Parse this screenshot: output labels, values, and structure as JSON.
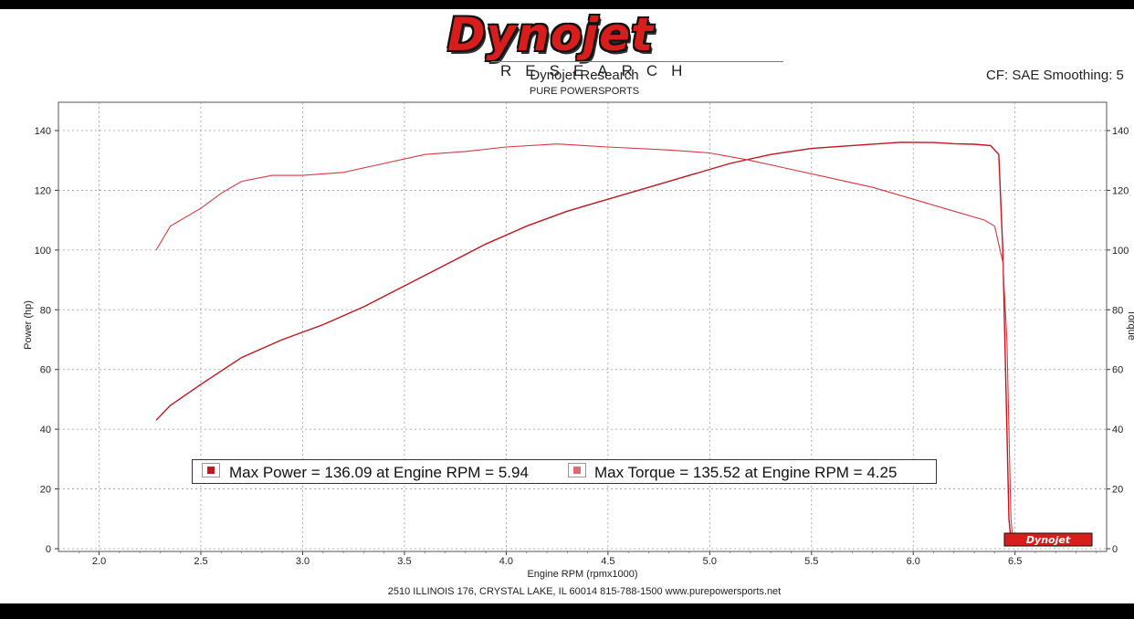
{
  "header": {
    "logo_text": "Dynojet",
    "logo_sub": "RESEARCH",
    "title": "Dynojet Research",
    "subtitle": "PURE POWERSPORTS",
    "cf_text": "CF: SAE Smoothing: 5"
  },
  "footer": {
    "address": "2510 ILLINOIS 176, CRYSTAL LAKE, IL 60014   815-788-1500   www.purepowersports.net"
  },
  "colors": {
    "power": "#c0161c",
    "torque": "#d9383e",
    "logo_red": "#d81d1d",
    "grid": "#9a9a9a"
  },
  "chart_data": {
    "type": "line",
    "xlabel": "Engine RPM (rpmx1000)",
    "ylabel": "Power (hp)",
    "y2label": "Torque",
    "xlim": [
      1.8,
      6.95
    ],
    "ylim": [
      0,
      148
    ],
    "x_ticks": [
      "2.0",
      "2.5",
      "3.0",
      "3.5",
      "4.0",
      "4.5",
      "5.0",
      "5.5",
      "6.0",
      "6.5"
    ],
    "y_ticks": [
      "0",
      "20",
      "40",
      "60",
      "80",
      "100",
      "120",
      "140"
    ],
    "grid": true,
    "legend": [
      {
        "label": "Max Power = 136.09 at Engine RPM = 5.94",
        "color": "#c0161c"
      },
      {
        "label": "Max Torque = 135.52 at Engine RPM = 4.25",
        "color": "#e06a6e"
      }
    ],
    "series": [
      {
        "key": "power",
        "x": [
          2.28,
          2.35,
          2.5,
          2.7,
          2.9,
          3.1,
          3.3,
          3.5,
          3.7,
          3.9,
          4.1,
          4.3,
          4.5,
          4.7,
          4.9,
          5.1,
          5.3,
          5.5,
          5.7,
          5.94,
          6.1,
          6.2,
          6.3,
          6.38,
          6.42,
          6.44,
          6.46,
          6.47,
          6.48,
          6.49
        ],
        "values": [
          43,
          48,
          55,
          64,
          70,
          75,
          81,
          88,
          95,
          102,
          108,
          113,
          117,
          121,
          125,
          129,
          132,
          134,
          135,
          136.09,
          136,
          135.6,
          135.4,
          135,
          132,
          100,
          40,
          10,
          3,
          1
        ]
      },
      {
        "key": "torque",
        "x": [
          2.28,
          2.35,
          2.5,
          2.6,
          2.7,
          2.85,
          3.0,
          3.2,
          3.4,
          3.6,
          3.8,
          4.0,
          4.25,
          4.5,
          4.8,
          5.0,
          5.2,
          5.4,
          5.6,
          5.8,
          6.0,
          6.2,
          6.35,
          6.4,
          6.44,
          6.46,
          6.47,
          6.48,
          6.49
        ],
        "values": [
          100,
          108,
          114,
          119,
          123,
          125,
          125,
          126,
          129,
          132,
          133,
          134.5,
          135.52,
          134.5,
          133.5,
          132.5,
          130,
          127,
          124,
          121,
          117,
          113,
          110,
          108,
          96,
          70,
          40,
          10,
          2
        ]
      }
    ]
  }
}
